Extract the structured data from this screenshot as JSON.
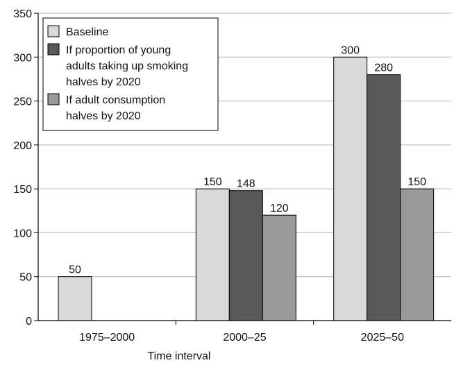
{
  "chart_data": {
    "type": "bar",
    "title": "",
    "xlabel": "Time interval",
    "ylabel": "",
    "categories": [
      "1975–2000",
      "2000–25",
      "2025–50"
    ],
    "ylim": [
      0,
      350
    ],
    "yticks": [
      0,
      50,
      100,
      150,
      200,
      250,
      300,
      350
    ],
    "grid": true,
    "legend_position": "top-left",
    "series": [
      {
        "name": "Baseline",
        "legend_lines": [
          "Baseline"
        ],
        "color": "#d9d9d9",
        "values": [
          50,
          150,
          300
        ]
      },
      {
        "name": "If proportion of young adults taking up smoking halves by 2020",
        "legend_lines": [
          "If proportion of young",
          "adults taking up smoking",
          "halves by 2020"
        ],
        "color": "#595959",
        "values": [
          null,
          148,
          280
        ]
      },
      {
        "name": "If adult consumption halves by 2020",
        "legend_lines": [
          "If adult consumption",
          "halves by 2020"
        ],
        "color": "#999999",
        "values": [
          null,
          120,
          150
        ]
      }
    ]
  }
}
